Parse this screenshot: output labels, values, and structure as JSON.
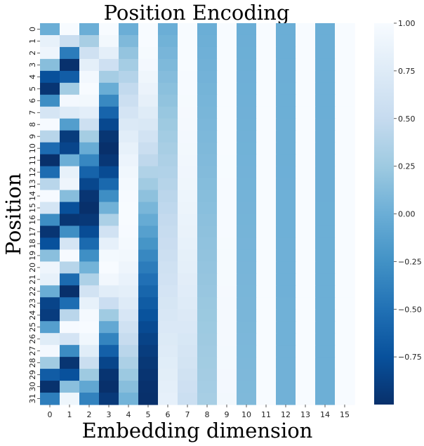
{
  "chart_data": {
    "type": "heatmap",
    "title": "Position Encoding",
    "xlabel": "Embedding dimension",
    "ylabel": "Position",
    "x": [
      0,
      1,
      2,
      3,
      4,
      5,
      6,
      7,
      8,
      9,
      10,
      11,
      12,
      13,
      14,
      15
    ],
    "y": [
      0,
      1,
      2,
      3,
      4,
      5,
      6,
      7,
      8,
      9,
      10,
      11,
      12,
      13,
      14,
      15,
      16,
      17,
      18,
      19,
      20,
      21,
      22,
      23,
      24,
      25,
      26,
      27,
      28,
      29,
      30,
      31
    ],
    "value_formula": "even dim 2i: sin(pos / 10000^(2i/16)); odd dim 2i+1: cos(pos / 10000^(2i/16))",
    "colormap": "Blues_r",
    "colorbar": {
      "vmin": -1.0,
      "vmax": 1.0,
      "ticks": [
        1.0,
        0.75,
        0.5,
        0.25,
        0.0,
        -0.25,
        -0.5,
        -0.75
      ],
      "tick_labels": [
        "1.00",
        "0.75",
        "0.50",
        "0.25",
        "0.00",
        "−0.25",
        "−0.50",
        "−0.75"
      ]
    },
    "colors": {
      "dark": "#08306b",
      "light": "#f7fbff",
      "mid": "#6baed6"
    }
  }
}
